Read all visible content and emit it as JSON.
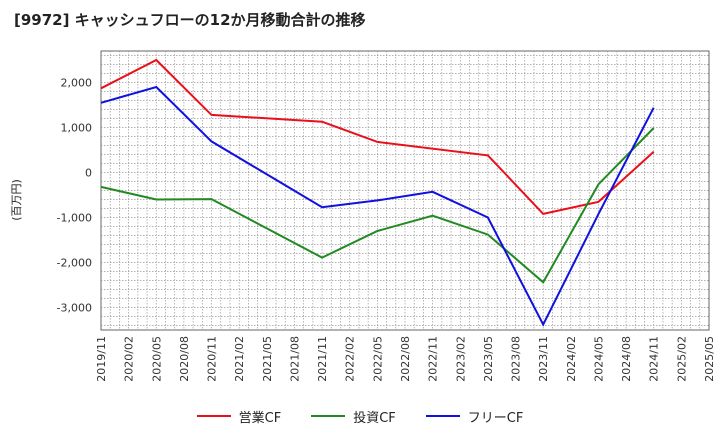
{
  "title": "[9972]  キャッシュフローの12か月移動合計の推移",
  "chart_data": {
    "type": "line",
    "title": "[9972]  キャッシュフローの12か月移動合計の推移",
    "ylabel": "(百万円)",
    "xlabel": "",
    "ylim": [
      -3500,
      2700
    ],
    "yticks": [
      2000,
      1000,
      0,
      -1000,
      -2000,
      -3000
    ],
    "ytick_labels": [
      "2,000",
      "1,000",
      "0",
      "-1,000",
      "-2,000",
      "-3,000"
    ],
    "categories": [
      "2019/11",
      "2020/02",
      "2020/05",
      "2020/08",
      "2020/11",
      "2021/02",
      "2021/05",
      "2021/08",
      "2021/11",
      "2022/02",
      "2022/05",
      "2022/08",
      "2022/11",
      "2023/02",
      "2023/05",
      "2023/08",
      "2023/11",
      "2024/02",
      "2024/05",
      "2024/08",
      "2024/11",
      "2025/02",
      "2025/05"
    ],
    "grid": true,
    "legend_position": "bottom",
    "series": [
      {
        "name": "営業CF",
        "color": "#e8101a",
        "values": [
          1870,
          null,
          2500,
          null,
          1280,
          null,
          null,
          null,
          1130,
          null,
          680,
          null,
          null,
          null,
          380,
          null,
          -920,
          null,
          -650,
          null,
          460,
          null,
          null
        ]
      },
      {
        "name": "投資CF",
        "color": "#238a23",
        "values": [
          -320,
          null,
          -600,
          null,
          -590,
          null,
          null,
          null,
          -1890,
          null,
          -1300,
          null,
          -960,
          null,
          -1380,
          null,
          -2440,
          null,
          -260,
          null,
          990,
          null,
          null
        ]
      },
      {
        "name": "フリーCF",
        "color": "#1010e0",
        "values": [
          1550,
          null,
          1900,
          null,
          690,
          null,
          null,
          null,
          -770,
          null,
          -620,
          null,
          -430,
          null,
          -1000,
          null,
          -3380,
          null,
          -920,
          null,
          1440,
          null,
          null
        ]
      }
    ]
  }
}
